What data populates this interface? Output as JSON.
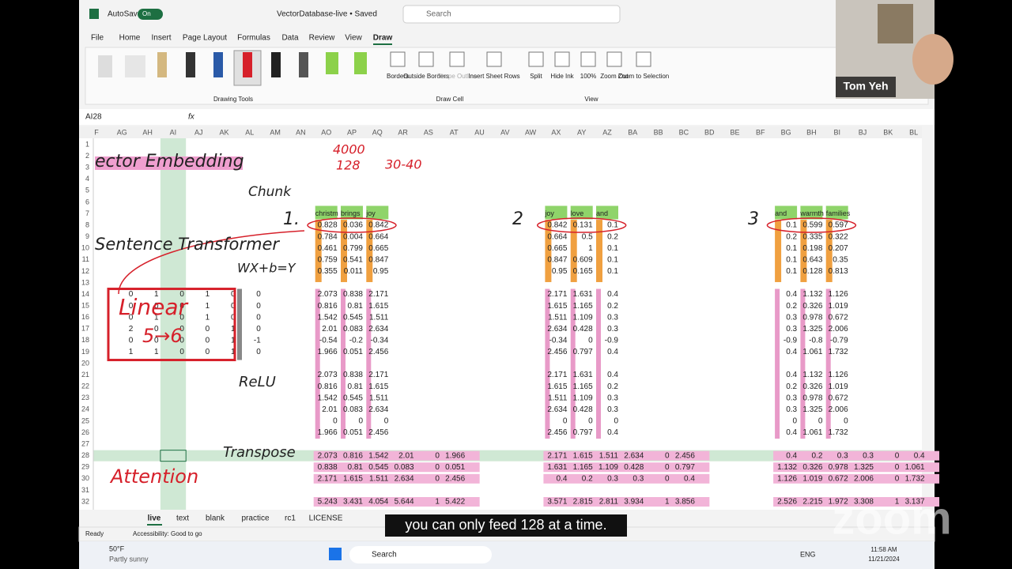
{
  "titlebar": {
    "autosave": "AutoSave",
    "toggle": "On",
    "filename": "VectorDatabase-live • Saved",
    "search": "Search"
  },
  "menu": [
    "File",
    "Home",
    "Insert",
    "Page Layout",
    "Formulas",
    "Data",
    "Review",
    "View",
    "Draw"
  ],
  "ribbon": {
    "drawing_tools": "Drawing Tools",
    "draw_cell": {
      "buttons": [
        "Borders",
        "Outside Borders",
        "Shape Outline",
        "Insert Sheet Rows"
      ],
      "label": "Draw Cell"
    },
    "view": {
      "buttons": [
        "Split",
        "Hide Ink",
        "100%",
        "Zoom Out",
        "Zoom to Selection"
      ],
      "label": "View"
    }
  },
  "formula_bar": {
    "name_box": "AI28",
    "fx": "fx"
  },
  "sheet": {
    "columns": [
      "F",
      "AG",
      "AH",
      "AI",
      "AJ",
      "AK",
      "AL",
      "AM",
      "AN",
      "AO",
      "AP",
      "AQ",
      "AR",
      "AS",
      "AT",
      "AU",
      "AV",
      "AW",
      "AX",
      "AY",
      "AZ",
      "BA",
      "BB",
      "BC",
      "BD",
      "BE",
      "BF",
      "BG",
      "BH",
      "BI",
      "BJ",
      "BK",
      "BL"
    ],
    "rows": [
      1,
      2,
      3,
      4,
      5,
      6,
      7,
      8,
      9,
      10,
      11,
      12,
      13,
      14,
      15,
      16,
      17,
      18,
      19,
      20,
      21,
      22,
      23,
      24,
      25,
      26,
      27,
      28,
      29,
      30,
      31,
      32
    ],
    "weights": [
      [
        0,
        1,
        0,
        1,
        0
      ],
      [
        0,
        0,
        0,
        1,
        0
      ],
      [
        0,
        1,
        0,
        1,
        0
      ],
      [
        2,
        0,
        0,
        0,
        1
      ],
      [
        0,
        0,
        0,
        0,
        1
      ],
      [
        1,
        1,
        0,
        0,
        1
      ]
    ],
    "bias": [
      0,
      0,
      0,
      0,
      -1,
      0
    ],
    "blocks": [
      {
        "header": [
          "christm",
          "brings",
          "joy"
        ],
        "embedding": [
          [
            0.828,
            0.036,
            0.842
          ],
          [
            0.784,
            0.004,
            0.664
          ],
          [
            0.461,
            0.799,
            0.665
          ],
          [
            0.759,
            0.541,
            0.847
          ],
          [
            0.355,
            0.011,
            0.95
          ]
        ],
        "linear": [
          [
            2.073,
            0.838,
            2.171
          ],
          [
            0.816,
            0.81,
            1.615
          ],
          [
            1.542,
            0.545,
            1.511
          ],
          [
            2.01,
            0.083,
            2.634
          ],
          [
            -0.54,
            -0.2,
            -0.34
          ],
          [
            1.966,
            0.051,
            2.456
          ]
        ],
        "relu": [
          [
            2.073,
            0.838,
            2.171
          ],
          [
            0.816,
            0.81,
            1.615
          ],
          [
            1.542,
            0.545,
            1.511
          ],
          [
            2.01,
            0.083,
            2.634
          ],
          [
            0,
            0,
            0
          ],
          [
            1.966,
            0.051,
            2.456
          ]
        ],
        "transpose": [
          [
            2.073,
            0.816,
            1.542,
            2.01,
            0,
            1.966
          ],
          [
            0.838,
            0.81,
            0.545,
            0.083,
            0,
            0.051
          ],
          [
            2.171,
            1.615,
            1.511,
            2.634,
            0,
            2.456
          ]
        ],
        "result": [
          5.243,
          3.431,
          4.054,
          5.644,
          1,
          5.422
        ]
      },
      {
        "header": [
          "joy",
          "love",
          "and"
        ],
        "embedding": [
          [
            0.842,
            0.131,
            0.1
          ],
          [
            0.664,
            0.5,
            0.2
          ],
          [
            0.665,
            1,
            0.1
          ],
          [
            0.847,
            0.609,
            0.1
          ],
          [
            0.95,
            0.165,
            0.1
          ]
        ],
        "linear": [
          [
            2.171,
            1.631,
            0.4
          ],
          [
            1.615,
            1.165,
            0.2
          ],
          [
            1.511,
            1.109,
            0.3
          ],
          [
            2.634,
            0.428,
            0.3
          ],
          [
            -0.34,
            0,
            -0.9
          ],
          [
            2.456,
            0.797,
            0.4
          ]
        ],
        "relu": [
          [
            2.171,
            1.631,
            0.4
          ],
          [
            1.615,
            1.165,
            0.2
          ],
          [
            1.511,
            1.109,
            0.3
          ],
          [
            2.634,
            0.428,
            0.3
          ],
          [
            0,
            0,
            0
          ],
          [
            2.456,
            0.797,
            0.4
          ]
        ],
        "transpose": [
          [
            2.171,
            1.615,
            1.511,
            2.634,
            0,
            2.456
          ],
          [
            1.631,
            1.165,
            1.109,
            0.428,
            0,
            0.797
          ],
          [
            0.4,
            0.2,
            0.3,
            0.3,
            0,
            0.4
          ]
        ],
        "result": [
          3.571,
          2.815,
          2.811,
          3.934,
          1,
          3.856
        ]
      },
      {
        "header": [
          "and",
          "warmth",
          "families"
        ],
        "embedding": [
          [
            0.1,
            0.599,
            0.597
          ],
          [
            0.2,
            0.335,
            0.322
          ],
          [
            0.1,
            0.198,
            0.207
          ],
          [
            0.1,
            0.643,
            0.35
          ],
          [
            0.1,
            0.128,
            0.813
          ]
        ],
        "linear": [
          [
            0.4,
            1.132,
            1.126
          ],
          [
            0.2,
            0.326,
            1.019
          ],
          [
            0.3,
            0.978,
            0.672
          ],
          [
            0.3,
            1.325,
            2.006
          ],
          [
            -0.9,
            -0.8,
            -0.79
          ],
          [
            0.4,
            1.061,
            1.732
          ]
        ],
        "relu": [
          [
            0.4,
            1.132,
            1.126
          ],
          [
            0.2,
            0.326,
            1.019
          ],
          [
            0.3,
            0.978,
            0.672
          ],
          [
            0.3,
            1.325,
            2.006
          ],
          [
            0,
            0,
            0
          ],
          [
            0.4,
            1.061,
            1.732
          ]
        ],
        "transpose": [
          [
            0.4,
            0.2,
            0.3,
            0.3,
            0,
            0.4
          ],
          [
            1.132,
            0.326,
            0.978,
            1.325,
            0,
            1.061
          ],
          [
            1.126,
            1.019,
            0.672,
            2.006,
            0,
            1.732
          ]
        ],
        "result": [
          2.526,
          2.215,
          1.972,
          3.308,
          1,
          3.137
        ]
      }
    ],
    "annotations": [
      "ector Embedding",
      "4000",
      "128",
      "30-40",
      "Chunk",
      "1.",
      "2",
      "3",
      "Sentence Transformer",
      "WX+b=Y",
      "Linear",
      "5→6",
      "ReLU",
      "Transpose",
      "Attention"
    ]
  },
  "tabs": [
    "live",
    "text",
    "blank",
    "practice",
    "rc1",
    "LICENSE"
  ],
  "status": {
    "ready": "Ready",
    "accessibility": "Accessibility: Good to go"
  },
  "caption": "you can only feed 128 at a time.",
  "taskbar": {
    "temperature": "50°F",
    "weather": "Partly sunny",
    "search": "Search",
    "language": "ENG",
    "time": "11:58 AM",
    "date": "11/21/2024"
  },
  "webcam": {
    "name": "Tom Yeh"
  },
  "zoom_logo": "zoom"
}
